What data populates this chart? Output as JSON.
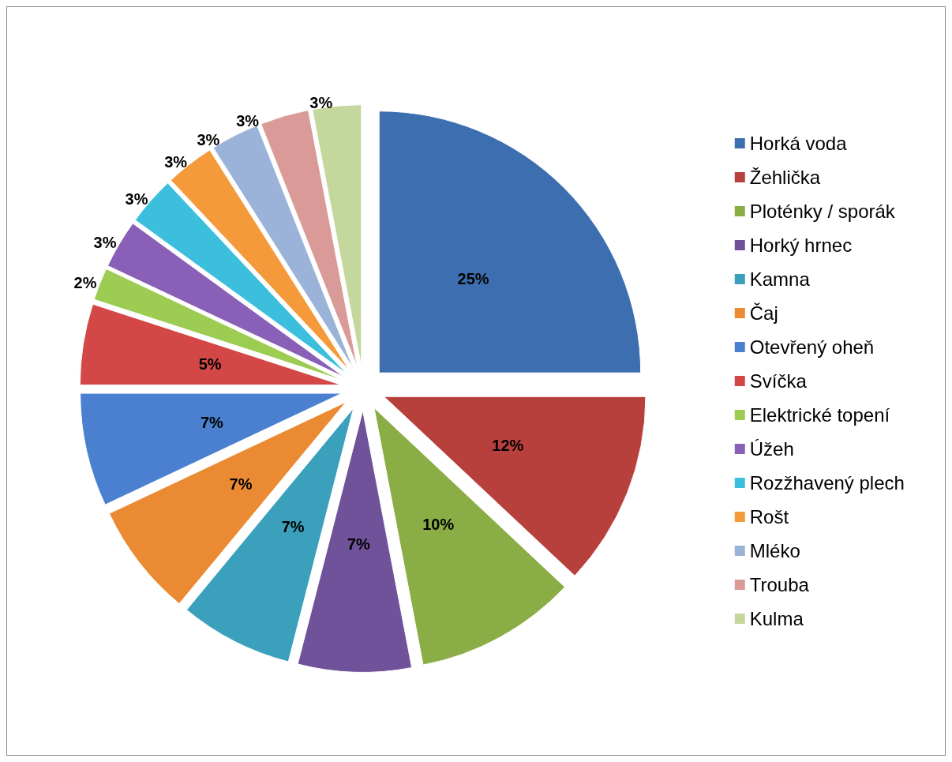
{
  "chart_data": {
    "type": "pie",
    "categories": [
      "Horká voda",
      "Žehlička",
      "Ploténky / sporák",
      "Horký hrnec",
      "Kamna",
      "Čaj",
      "Otevřený oheň",
      "Svíčka",
      "Elektrické topení",
      "Úžeh",
      "Rozžhavený plech",
      "Rošt",
      "Mléko",
      "Trouba",
      "Kulma"
    ],
    "values": [
      25,
      12,
      10,
      7,
      7,
      7,
      7,
      5,
      2,
      3,
      3,
      3,
      3,
      3,
      3
    ],
    "value_labels": [
      "25%",
      "12%",
      "10%",
      "7%",
      "7%",
      "7%",
      "7%",
      "5%",
      "2%",
      "3%",
      "3%",
      "3%",
      "3%",
      "3%",
      "3%"
    ],
    "colors": [
      "#3d6fb0",
      "#b8403c",
      "#8aad45",
      "#70529a",
      "#3aa0bb",
      "#ea8a33",
      "#4a80cf",
      "#d34846",
      "#9ccc52",
      "#8a5fb8",
      "#3cbfdc",
      "#f59a3a",
      "#9bb3d8",
      "#d99a98",
      "#c4d79d"
    ],
    "legend": "right"
  }
}
